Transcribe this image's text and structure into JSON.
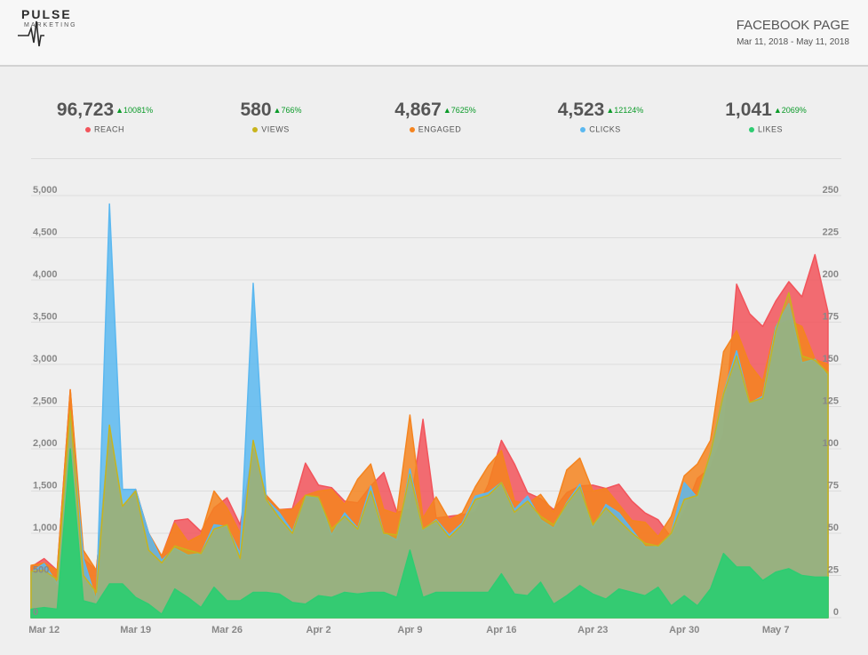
{
  "header": {
    "logo_text": "PULSE",
    "logo_sub": "MARKETING",
    "title": "FACEBOOK PAGE",
    "date_range": "Mar 11, 2018 - May 11, 2018"
  },
  "kpis": [
    {
      "value": "96,723",
      "change": "▲10081%",
      "label": "REACH",
      "color": "#f2545b"
    },
    {
      "value": "580",
      "change": "▲766%",
      "label": "VIEWS",
      "color": "#c8b41c"
    },
    {
      "value": "4,867",
      "change": "▲7625%",
      "label": "ENGAGED",
      "color": "#f5841f"
    },
    {
      "value": "4,523",
      "change": "▲12124%",
      "label": "CLICKS",
      "color": "#5bb8f0"
    },
    {
      "value": "1,041",
      "change": "▲2069%",
      "label": "LIKES",
      "color": "#2ecc71"
    }
  ],
  "chart_data": {
    "type": "area",
    "x": [
      "Mar 11",
      "Mar 12",
      "Mar 13",
      "Mar 14",
      "Mar 15",
      "Mar 16",
      "Mar 17",
      "Mar 18",
      "Mar 19",
      "Mar 20",
      "Mar 21",
      "Mar 22",
      "Mar 23",
      "Mar 24",
      "Mar 25",
      "Mar 26",
      "Mar 27",
      "Mar 28",
      "Mar 29",
      "Mar 30",
      "Mar 31",
      "Apr 1",
      "Apr 2",
      "Apr 3",
      "Apr 4",
      "Apr 5",
      "Apr 6",
      "Apr 7",
      "Apr 8",
      "Apr 9",
      "Apr 10",
      "Apr 11",
      "Apr 12",
      "Apr 13",
      "Apr 14",
      "Apr 15",
      "Apr 16",
      "Apr 17",
      "Apr 18",
      "Apr 19",
      "Apr 20",
      "Apr 21",
      "Apr 22",
      "Apr 23",
      "Apr 24",
      "Apr 25",
      "Apr 26",
      "Apr 27",
      "Apr 28",
      "Apr 29",
      "Apr 30",
      "May 1",
      "May 2",
      "May 3",
      "May 4",
      "May 5",
      "May 6",
      "May 7",
      "May 8",
      "May 9",
      "May 10",
      "May 11"
    ],
    "x_ticks": [
      "Mar 12",
      "Mar 19",
      "Mar 26",
      "Apr 2",
      "Apr 9",
      "Apr 16",
      "Apr 23",
      "Apr 30",
      "May 7"
    ],
    "x_tick_dates": [
      "Mar 12",
      "Mar 19",
      "Mar 26",
      "Apr 2",
      "Apr 9",
      "Apr 16",
      "Apr 23",
      "Apr 30",
      "May 7"
    ],
    "y_left_ticks": [
      "0",
      "500",
      "1,000",
      "1,500",
      "2,000",
      "2,500",
      "3,000",
      "3,500",
      "4,000",
      "4,500",
      "5,000"
    ],
    "y_right_ticks": [
      "0",
      "25",
      "50",
      "75",
      "100",
      "125",
      "150",
      "175",
      "200",
      "225",
      "250"
    ],
    "ylim_left": [
      0,
      5000
    ],
    "ylim_right": [
      0,
      250
    ],
    "grid": true,
    "series": [
      {
        "name": "REACH",
        "axis": "left",
        "color": "#f2545b",
        "values": [
          600,
          700,
          560,
          2700,
          700,
          560,
          2200,
          1300,
          1520,
          1000,
          730,
          1150,
          1170,
          1020,
          1300,
          1420,
          1100,
          2000,
          1450,
          1280,
          1290,
          1830,
          1570,
          1540,
          1380,
          1360,
          1560,
          1720,
          1250,
          1280,
          2350,
          1180,
          1200,
          1220,
          1250,
          1580,
          2100,
          1820,
          1480,
          1410,
          1280,
          1480,
          1560,
          1570,
          1530,
          1580,
          1380,
          1240,
          1160,
          950,
          1250,
          1650,
          1780,
          2180,
          3950,
          3600,
          3450,
          3750,
          3980,
          3800,
          4300,
          3620
        ]
      },
      {
        "name": "ENGAGED",
        "axis": "left",
        "color": "#f5841f",
        "values": [
          620,
          650,
          560,
          2700,
          800,
          560,
          2200,
          1250,
          1520,
          1000,
          730,
          1120,
          900,
          980,
          1500,
          1300,
          1000,
          2000,
          1450,
          1280,
          1280,
          1450,
          1500,
          1520,
          1340,
          1640,
          1820,
          1280,
          1230,
          2400,
          1180,
          1430,
          1160,
          1240,
          1550,
          1800,
          1980,
          1380,
          1350,
          1460,
          1250,
          1750,
          1890,
          1500,
          1530,
          1340,
          1150,
          1130,
          960,
          1200,
          1680,
          1820,
          2100,
          3150,
          3400,
          3000,
          2800,
          3460,
          3520,
          3450,
          3060,
          3000
        ]
      },
      {
        "name": "CLICKS",
        "axis": "right",
        "color": "#5bb8f0",
        "values": [
          27,
          32,
          20,
          120,
          35,
          10,
          245,
          76,
          76,
          50,
          34,
          41,
          37,
          38,
          55,
          54,
          38,
          198,
          70,
          62,
          51,
          72,
          71,
          49,
          62,
          53,
          78,
          50,
          46,
          88,
          52,
          58,
          49,
          56,
          72,
          74,
          80,
          64,
          72,
          58,
          53,
          68,
          79,
          53,
          67,
          62,
          52,
          42,
          42,
          50,
          80,
          71,
          98,
          133,
          158,
          127,
          131,
          172,
          186,
          151,
          153,
          143
        ]
      },
      {
        "name": "VIEWS",
        "axis": "left",
        "color": "#c8b41c",
        "values": [
          550,
          560,
          450,
          2450,
          500,
          300,
          2280,
          1320,
          1500,
          800,
          650,
          850,
          800,
          760,
          1050,
          1100,
          700,
          2100,
          1400,
          1180,
          1000,
          1450,
          1430,
          1050,
          1200,
          1050,
          1500,
          1000,
          980,
          1700,
          1050,
          1150,
          950,
          1100,
          1400,
          1450,
          1600,
          1250,
          1380,
          1200,
          1100,
          1350,
          1550,
          1100,
          1300,
          1150,
          1000,
          880,
          850,
          1000,
          1400,
          1450,
          1950,
          2650,
          3100,
          2550,
          2600,
          3400,
          3850,
          3100,
          3050,
          2900
        ]
      },
      {
        "name": "LIKES",
        "axis": "right",
        "color": "#2ecc71",
        "values": [
          5,
          6,
          5,
          100,
          10,
          8,
          20,
          20,
          12,
          8,
          2,
          17,
          12,
          6,
          18,
          10,
          10,
          15,
          15,
          14,
          9,
          8,
          13,
          12,
          15,
          14,
          15,
          15,
          12,
          40,
          12,
          15,
          15,
          15,
          15,
          15,
          26,
          14,
          13,
          21,
          8,
          13,
          19,
          14,
          11,
          17,
          15,
          13,
          18,
          7,
          13,
          7,
          17,
          38,
          30,
          30,
          22,
          27,
          29,
          25,
          24,
          24
        ]
      }
    ]
  }
}
